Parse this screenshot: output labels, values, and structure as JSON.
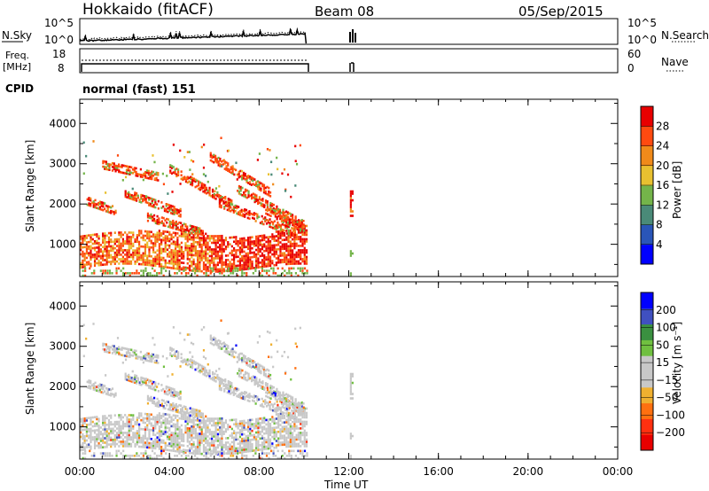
{
  "header": {
    "title": "Hokkaido (fitACF)",
    "beam": "Beam 08",
    "date": "05/Sep/2015"
  },
  "nsky_panel": {
    "left_label": "N.Sky",
    "left_ticks": [
      "10^5",
      "10^0"
    ],
    "right_ticks": [
      "10^5",
      "10^0"
    ],
    "right_label": "N.Search"
  },
  "freq_panel": {
    "left_label_1": "Freq.",
    "left_label_2": "[MHz]",
    "left_ticks": [
      "18",
      "8"
    ],
    "right_ticks": [
      "60",
      "0"
    ],
    "right_label": "Nave"
  },
  "cpid": {
    "label": "CPID",
    "value": "normal (fast) 151"
  },
  "x_axis": {
    "label": "Time UT",
    "ticks": [
      "00:00",
      "04:00",
      "08:00",
      "12:00",
      "16:00",
      "20:00",
      "00:00"
    ]
  },
  "colors": {
    "power": [
      "#0000ff",
      "#2a55b8",
      "#4a8a78",
      "#74b44a",
      "#e8c030",
      "#f08a1a",
      "#ff4a10",
      "#e80000"
    ],
    "velocity": [
      "#e80000",
      "#ff3010",
      "#ff7010",
      "#f0b030",
      "#c8c8c8",
      "#c8c8c8",
      "#70c040",
      "#3a9040",
      "#4050c0",
      "#0000ff"
    ]
  },
  "chart_data": [
    {
      "type": "heatmap",
      "title": "",
      "xlabel": "Time UT",
      "ylabel": "Slant Range [km]",
      "xlim_hours": [
        0,
        24
      ],
      "ylim": [
        200,
        4600
      ],
      "y_ticks": [
        "1000",
        "2000",
        "3000",
        "4000"
      ],
      "colorbar_label": "Power [dB]",
      "colorbar_ticks": [
        "4",
        "8",
        "12",
        "16",
        "20",
        "24",
        "28"
      ],
      "data_periods_hours": [
        [
          0.0,
          10.1
        ],
        [
          12.0,
          12.3
        ]
      ]
    },
    {
      "type": "heatmap",
      "title": "",
      "xlabel": "Time UT",
      "ylabel": "Slant Range [km]",
      "xlim_hours": [
        0,
        24
      ],
      "ylim": [
        200,
        4600
      ],
      "y_ticks": [
        "1000",
        "2000",
        "3000",
        "4000"
      ],
      "colorbar_label": "Velocity [m s⁻¹]",
      "colorbar_ticks": [
        "200",
        "100",
        "50",
        "15",
        "−15",
        "−50",
        "−100",
        "−200"
      ],
      "data_periods_hours": [
        [
          0.0,
          10.1
        ],
        [
          12.0,
          12.3
        ]
      ]
    }
  ]
}
